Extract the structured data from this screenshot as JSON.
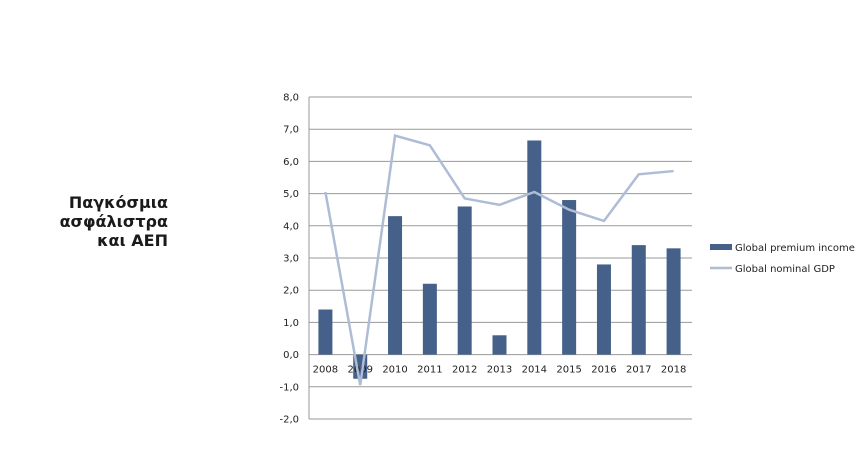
{
  "title_lines": [
    "Παγκόσμια",
    "ασφάλιστρα",
    "και ΑΕΠ"
  ],
  "chart_data": {
    "type": "bar+line",
    "title": "Παγκόσμια ασφάλιστρα και ΑΕΠ",
    "categories": [
      "2008",
      "2009",
      "2010",
      "2011",
      "2012",
      "2013",
      "2014",
      "2015",
      "2016",
      "2017",
      "2018"
    ],
    "series": [
      {
        "name": "Global premium income",
        "type": "bar",
        "color": "#456189",
        "values": [
          1.4,
          -0.75,
          4.3,
          2.2,
          4.6,
          0.6,
          6.65,
          4.8,
          2.8,
          3.4,
          3.3
        ]
      },
      {
        "name": "Global nominal GDP",
        "type": "line",
        "color": "#aebcd6",
        "values": [
          5.05,
          -0.95,
          6.8,
          6.5,
          4.85,
          4.65,
          5.05,
          4.5,
          4.15,
          5.6,
          5.7
        ]
      }
    ],
    "ylim": [
      -2,
      8
    ],
    "yticks": [
      "-2,0",
      "-1,0",
      "0,0",
      "1,0",
      "2,0",
      "3,0",
      "4,0",
      "5,0",
      "6,0",
      "7,0",
      "8,0"
    ],
    "grid": true,
    "legend": "right",
    "xlabel": "",
    "ylabel": ""
  }
}
